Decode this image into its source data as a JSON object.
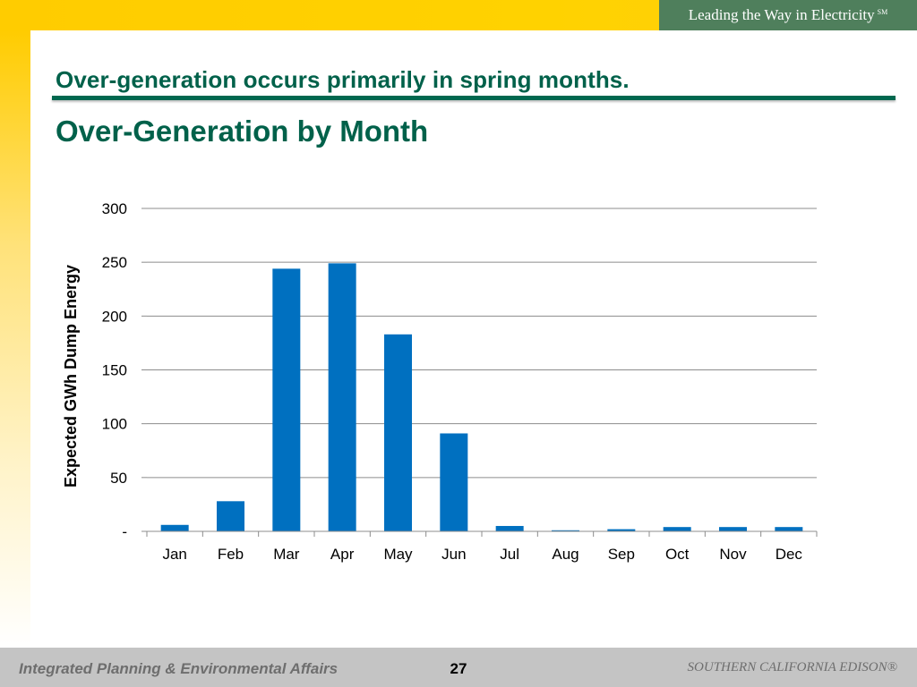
{
  "header": {
    "tagline": "Leading the Way in Electricity",
    "tagline_mark": "SM"
  },
  "slide": {
    "headline": "Over-generation occurs primarily in spring months.",
    "subtitle": "Over-Generation by Month"
  },
  "chart_data": {
    "type": "bar",
    "categories": [
      "Jan",
      "Feb",
      "Mar",
      "Apr",
      "May",
      "Jun",
      "Jul",
      "Aug",
      "Sep",
      "Oct",
      "Nov",
      "Dec"
    ],
    "values": [
      6,
      28,
      244,
      249,
      183,
      91,
      5,
      1,
      2,
      4,
      4,
      4
    ],
    "xlabel": "",
    "ylabel": "Expected GWh Dump Energy",
    "ylim": [
      0,
      300
    ],
    "yticks": [
      0,
      50,
      100,
      150,
      200,
      250,
      300
    ],
    "ytick_labels": [
      "-",
      "50",
      "100",
      "150",
      "200",
      "250",
      "300"
    ],
    "grid": true,
    "bar_color": "#0070c0"
  },
  "footer": {
    "left": "Integrated Planning & Environmental Affairs",
    "page": "27",
    "right": "SOUTHERN CALIFORNIA EDISON®"
  }
}
